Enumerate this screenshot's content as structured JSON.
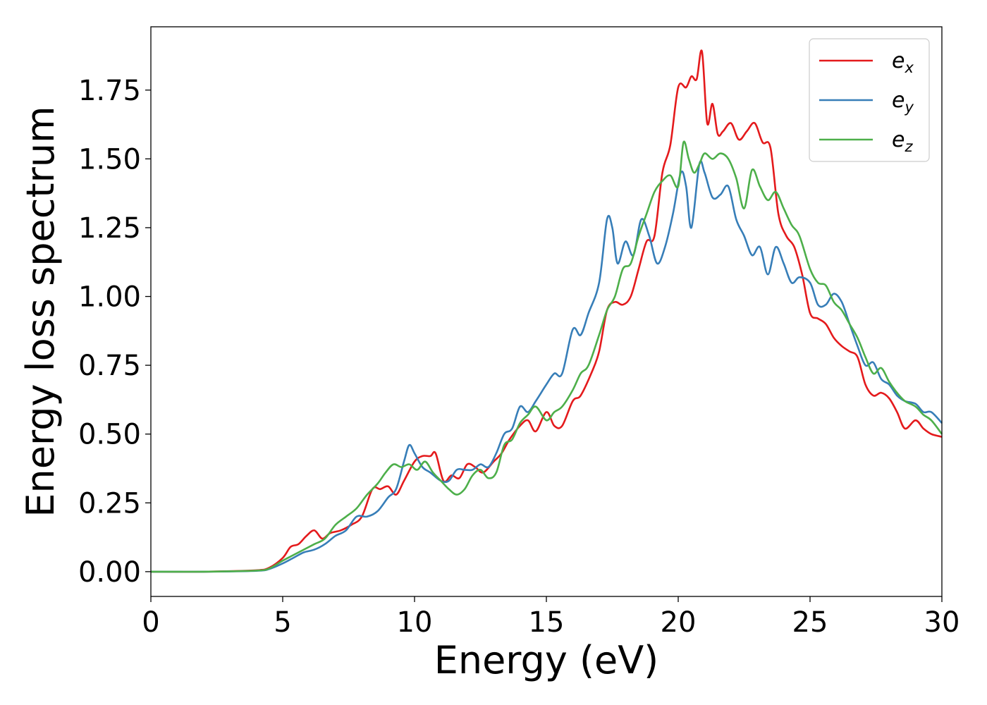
{
  "chart_data": {
    "type": "line",
    "title": "",
    "xlabel": "Energy (eV)",
    "ylabel": "Energy loss spectrum",
    "xlim": [
      0,
      30
    ],
    "ylim": [
      -0.09,
      1.98
    ],
    "xticks": [
      0,
      5,
      10,
      15,
      20,
      25,
      30
    ],
    "xtick_labels": [
      "0",
      "5",
      "10",
      "15",
      "20",
      "25",
      "30"
    ],
    "yticks": [
      0.0,
      0.25,
      0.5,
      0.75,
      1.0,
      1.25,
      1.5,
      1.75
    ],
    "ytick_labels": [
      "0.00",
      "0.25",
      "0.50",
      "0.75",
      "1.00",
      "1.25",
      "1.50",
      "1.75"
    ],
    "grid": false,
    "legend_position": "top-right",
    "series": [
      {
        "name": "e_x",
        "legend_base": "e",
        "legend_sub": "x",
        "color": "#e41a1c",
        "x": [
          0,
          2,
          4,
          4.5,
          5,
          5.3,
          5.6,
          5.9,
          6.2,
          6.5,
          6.8,
          7.2,
          7.6,
          8,
          8.4,
          8.7,
          9,
          9.3,
          9.6,
          10,
          10.3,
          10.6,
          10.8,
          11.1,
          11.4,
          11.7,
          12,
          12.3,
          12.6,
          13,
          13.3,
          13.6,
          14,
          14.3,
          14.6,
          15,
          15.3,
          15.6,
          16,
          16.3,
          16.7,
          17,
          17.3,
          17.6,
          17.9,
          18.2,
          18.5,
          18.8,
          19.1,
          19.4,
          19.7,
          20,
          20.3,
          20.5,
          20.7,
          20.9,
          21.1,
          21.3,
          21.5,
          21.7,
          22,
          22.3,
          22.6,
          22.9,
          23.2,
          23.5,
          23.8,
          24.1,
          24.4,
          24.7,
          25,
          25.3,
          25.6,
          25.9,
          26.2,
          26.5,
          26.8,
          27.1,
          27.4,
          27.7,
          28,
          28.3,
          28.6,
          29,
          29.3,
          29.6,
          30
        ],
        "y": [
          0.0,
          0.0,
          0.005,
          0.015,
          0.05,
          0.09,
          0.1,
          0.13,
          0.15,
          0.12,
          0.14,
          0.15,
          0.17,
          0.2,
          0.3,
          0.3,
          0.31,
          0.28,
          0.33,
          0.4,
          0.42,
          0.42,
          0.43,
          0.33,
          0.35,
          0.34,
          0.39,
          0.38,
          0.36,
          0.4,
          0.43,
          0.48,
          0.53,
          0.55,
          0.51,
          0.58,
          0.53,
          0.53,
          0.62,
          0.64,
          0.72,
          0.8,
          0.95,
          0.98,
          0.97,
          1.0,
          1.1,
          1.2,
          1.22,
          1.45,
          1.55,
          1.76,
          1.76,
          1.8,
          1.79,
          1.89,
          1.63,
          1.7,
          1.59,
          1.6,
          1.63,
          1.57,
          1.6,
          1.63,
          1.56,
          1.54,
          1.3,
          1.22,
          1.18,
          1.08,
          0.94,
          0.92,
          0.9,
          0.85,
          0.82,
          0.8,
          0.78,
          0.68,
          0.64,
          0.65,
          0.63,
          0.58,
          0.52,
          0.55,
          0.52,
          0.5,
          0.49
        ]
      },
      {
        "name": "e_y",
        "legend_base": "e",
        "legend_sub": "y",
        "color": "#377eb8",
        "x": [
          0,
          2,
          4,
          4.5,
          5,
          5.4,
          5.8,
          6.2,
          6.6,
          7,
          7.4,
          7.8,
          8.2,
          8.6,
          9,
          9.3,
          9.6,
          9.8,
          10,
          10.3,
          10.6,
          11,
          11.3,
          11.6,
          11.9,
          12.2,
          12.5,
          12.8,
          13.1,
          13.4,
          13.7,
          14,
          14.3,
          14.6,
          15,
          15.3,
          15.6,
          16,
          16.3,
          16.6,
          17,
          17.3,
          17.5,
          17.7,
          18,
          18.3,
          18.6,
          18.9,
          19.2,
          19.5,
          19.8,
          20.1,
          20.3,
          20.5,
          20.8,
          21,
          21.3,
          21.6,
          21.9,
          22.2,
          22.5,
          22.8,
          23.1,
          23.4,
          23.7,
          24,
          24.3,
          24.6,
          25,
          25.3,
          25.6,
          25.9,
          26.2,
          26.5,
          26.8,
          27.1,
          27.4,
          27.7,
          28,
          28.3,
          28.6,
          29,
          29.3,
          29.6,
          30
        ],
        "y": [
          0.0,
          0.0,
          0.003,
          0.01,
          0.03,
          0.05,
          0.07,
          0.08,
          0.1,
          0.13,
          0.15,
          0.2,
          0.2,
          0.22,
          0.27,
          0.3,
          0.4,
          0.46,
          0.43,
          0.38,
          0.36,
          0.33,
          0.33,
          0.37,
          0.37,
          0.37,
          0.39,
          0.38,
          0.43,
          0.5,
          0.52,
          0.6,
          0.58,
          0.62,
          0.68,
          0.72,
          0.72,
          0.88,
          0.86,
          0.94,
          1.05,
          1.28,
          1.25,
          1.12,
          1.2,
          1.15,
          1.28,
          1.22,
          1.12,
          1.18,
          1.3,
          1.45,
          1.4,
          1.25,
          1.48,
          1.45,
          1.36,
          1.37,
          1.4,
          1.28,
          1.22,
          1.15,
          1.18,
          1.08,
          1.18,
          1.12,
          1.05,
          1.07,
          1.05,
          0.97,
          0.97,
          1.01,
          0.98,
          0.9,
          0.82,
          0.75,
          0.76,
          0.7,
          0.68,
          0.64,
          0.62,
          0.61,
          0.58,
          0.58,
          0.54
        ]
      },
      {
        "name": "e_z",
        "legend_base": "e",
        "legend_sub": "z",
        "color": "#4daf4a",
        "x": [
          0,
          2,
          4,
          4.5,
          5,
          5.4,
          5.8,
          6.2,
          6.6,
          7,
          7.4,
          7.8,
          8.2,
          8.6,
          8.9,
          9.2,
          9.5,
          9.8,
          10.1,
          10.4,
          10.7,
          11,
          11.3,
          11.6,
          11.9,
          12.2,
          12.5,
          12.8,
          13.1,
          13.4,
          13.7,
          14,
          14.3,
          14.6,
          15,
          15.3,
          15.6,
          16,
          16.3,
          16.6,
          17,
          17.3,
          17.6,
          17.9,
          18.2,
          18.5,
          18.8,
          19.1,
          19.4,
          19.7,
          20,
          20.2,
          20.4,
          20.6,
          20.8,
          21,
          21.3,
          21.6,
          21.9,
          22.2,
          22.5,
          22.8,
          23.1,
          23.4,
          23.7,
          24,
          24.3,
          24.6,
          25,
          25.3,
          25.6,
          25.9,
          26.2,
          26.5,
          26.8,
          27.1,
          27.4,
          27.7,
          28,
          28.3,
          28.6,
          29,
          29.3,
          29.6,
          30
        ],
        "y": [
          0.0,
          0.0,
          0.004,
          0.012,
          0.04,
          0.06,
          0.08,
          0.1,
          0.12,
          0.17,
          0.2,
          0.23,
          0.28,
          0.32,
          0.36,
          0.39,
          0.38,
          0.39,
          0.37,
          0.4,
          0.36,
          0.33,
          0.3,
          0.28,
          0.3,
          0.35,
          0.37,
          0.34,
          0.36,
          0.46,
          0.48,
          0.54,
          0.57,
          0.6,
          0.55,
          0.58,
          0.6,
          0.66,
          0.72,
          0.75,
          0.86,
          0.95,
          1.0,
          1.1,
          1.12,
          1.22,
          1.3,
          1.38,
          1.42,
          1.44,
          1.4,
          1.56,
          1.5,
          1.45,
          1.48,
          1.52,
          1.5,
          1.52,
          1.5,
          1.43,
          1.32,
          1.46,
          1.4,
          1.35,
          1.38,
          1.32,
          1.26,
          1.22,
          1.1,
          1.05,
          1.04,
          0.98,
          0.95,
          0.9,
          0.85,
          0.78,
          0.72,
          0.74,
          0.69,
          0.65,
          0.62,
          0.6,
          0.57,
          0.55,
          0.5
        ]
      }
    ]
  }
}
